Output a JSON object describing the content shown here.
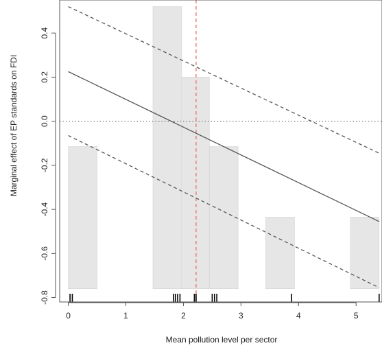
{
  "chart_data": {
    "type": "line",
    "title": "",
    "xlabel": "Mean pollution level per sector",
    "ylabel": "Marginal effect of EP standards on FDI",
    "xlim": [
      -0.15,
      5.45
    ],
    "ylim": [
      -0.82,
      0.55
    ],
    "xticks": [
      0,
      1,
      2,
      3,
      4,
      5
    ],
    "yticks": [
      -0.8,
      -0.6,
      -0.4,
      -0.2,
      0.0,
      0.2,
      0.4
    ],
    "ytick_labels": [
      "-0.8",
      "-0.6",
      "-0.4",
      "-0.2",
      "0.0",
      "0.2",
      "0.4"
    ],
    "histogram": {
      "base": -0.76,
      "bars": [
        {
          "x0": 0.0,
          "x1": 0.5,
          "top": -0.115
        },
        {
          "x0": 1.47,
          "x1": 1.97,
          "top": 0.52
        },
        {
          "x0": 1.97,
          "x1": 2.45,
          "top": 0.2
        },
        {
          "x0": 2.45,
          "x1": 2.95,
          "top": -0.115
        },
        {
          "x0": 3.43,
          "x1": 3.93,
          "top": -0.435
        },
        {
          "x0": 4.9,
          "x1": 5.4,
          "top": -0.435
        }
      ],
      "color": "#e6e6e6"
    },
    "series": [
      {
        "role": "estimate",
        "x": [
          0,
          5.4
        ],
        "y": [
          0.225,
          -0.455
        ],
        "style": "solid",
        "color": "#555555"
      },
      {
        "role": "upper-ci",
        "x": [
          0,
          5.4
        ],
        "y": [
          0.52,
          -0.145
        ],
        "style": "dashed",
        "color": "#555555"
      },
      {
        "role": "lower-ci",
        "x": [
          0,
          5.4
        ],
        "y": [
          -0.065,
          -0.755
        ],
        "style": "dashed",
        "color": "#555555"
      }
    ],
    "reference_lines": [
      {
        "axis": "y",
        "value": 0.0,
        "style": "dotted",
        "color": "#555555"
      },
      {
        "axis": "x",
        "value": 2.22,
        "style": "dashed",
        "color": "#e87b7b"
      }
    ],
    "rug_values": [
      0.03,
      0.07,
      1.83,
      1.86,
      1.9,
      1.94,
      2.19,
      2.22,
      2.5,
      2.54,
      2.58,
      3.88,
      5.4
    ],
    "grid": false
  }
}
